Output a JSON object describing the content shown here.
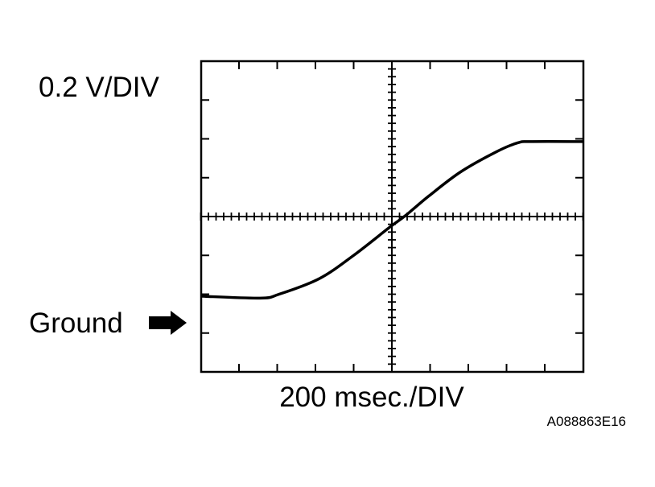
{
  "chart_data": {
    "type": "line",
    "title": "",
    "ylabel": "0.2 V/DIV",
    "xlabel": "200 msec./DIV",
    "xlim_div": [
      -5,
      5
    ],
    "ylim_div": [
      -4,
      4
    ],
    "grid": false,
    "center_axes_with_minor_ticks": true,
    "ground_marker": {
      "label": "Ground",
      "level_div": -2.7,
      "icon": "right-arrow-icon"
    },
    "series": [
      {
        "color": "#000000",
        "x": [
          -5,
          -3.45,
          -2.95,
          -1.9,
          -1.0,
          -0.05,
          0.35,
          0.97,
          1.8,
          2.74,
          3.3,
          3.65,
          5
        ],
        "y": [
          -2.05,
          -2.1,
          -2.0,
          -1.6,
          -1.0,
          -0.27,
          0.02,
          0.53,
          1.15,
          1.67,
          1.9,
          1.93,
          1.93
        ]
      }
    ],
    "figure_id": "A088863E16"
  }
}
